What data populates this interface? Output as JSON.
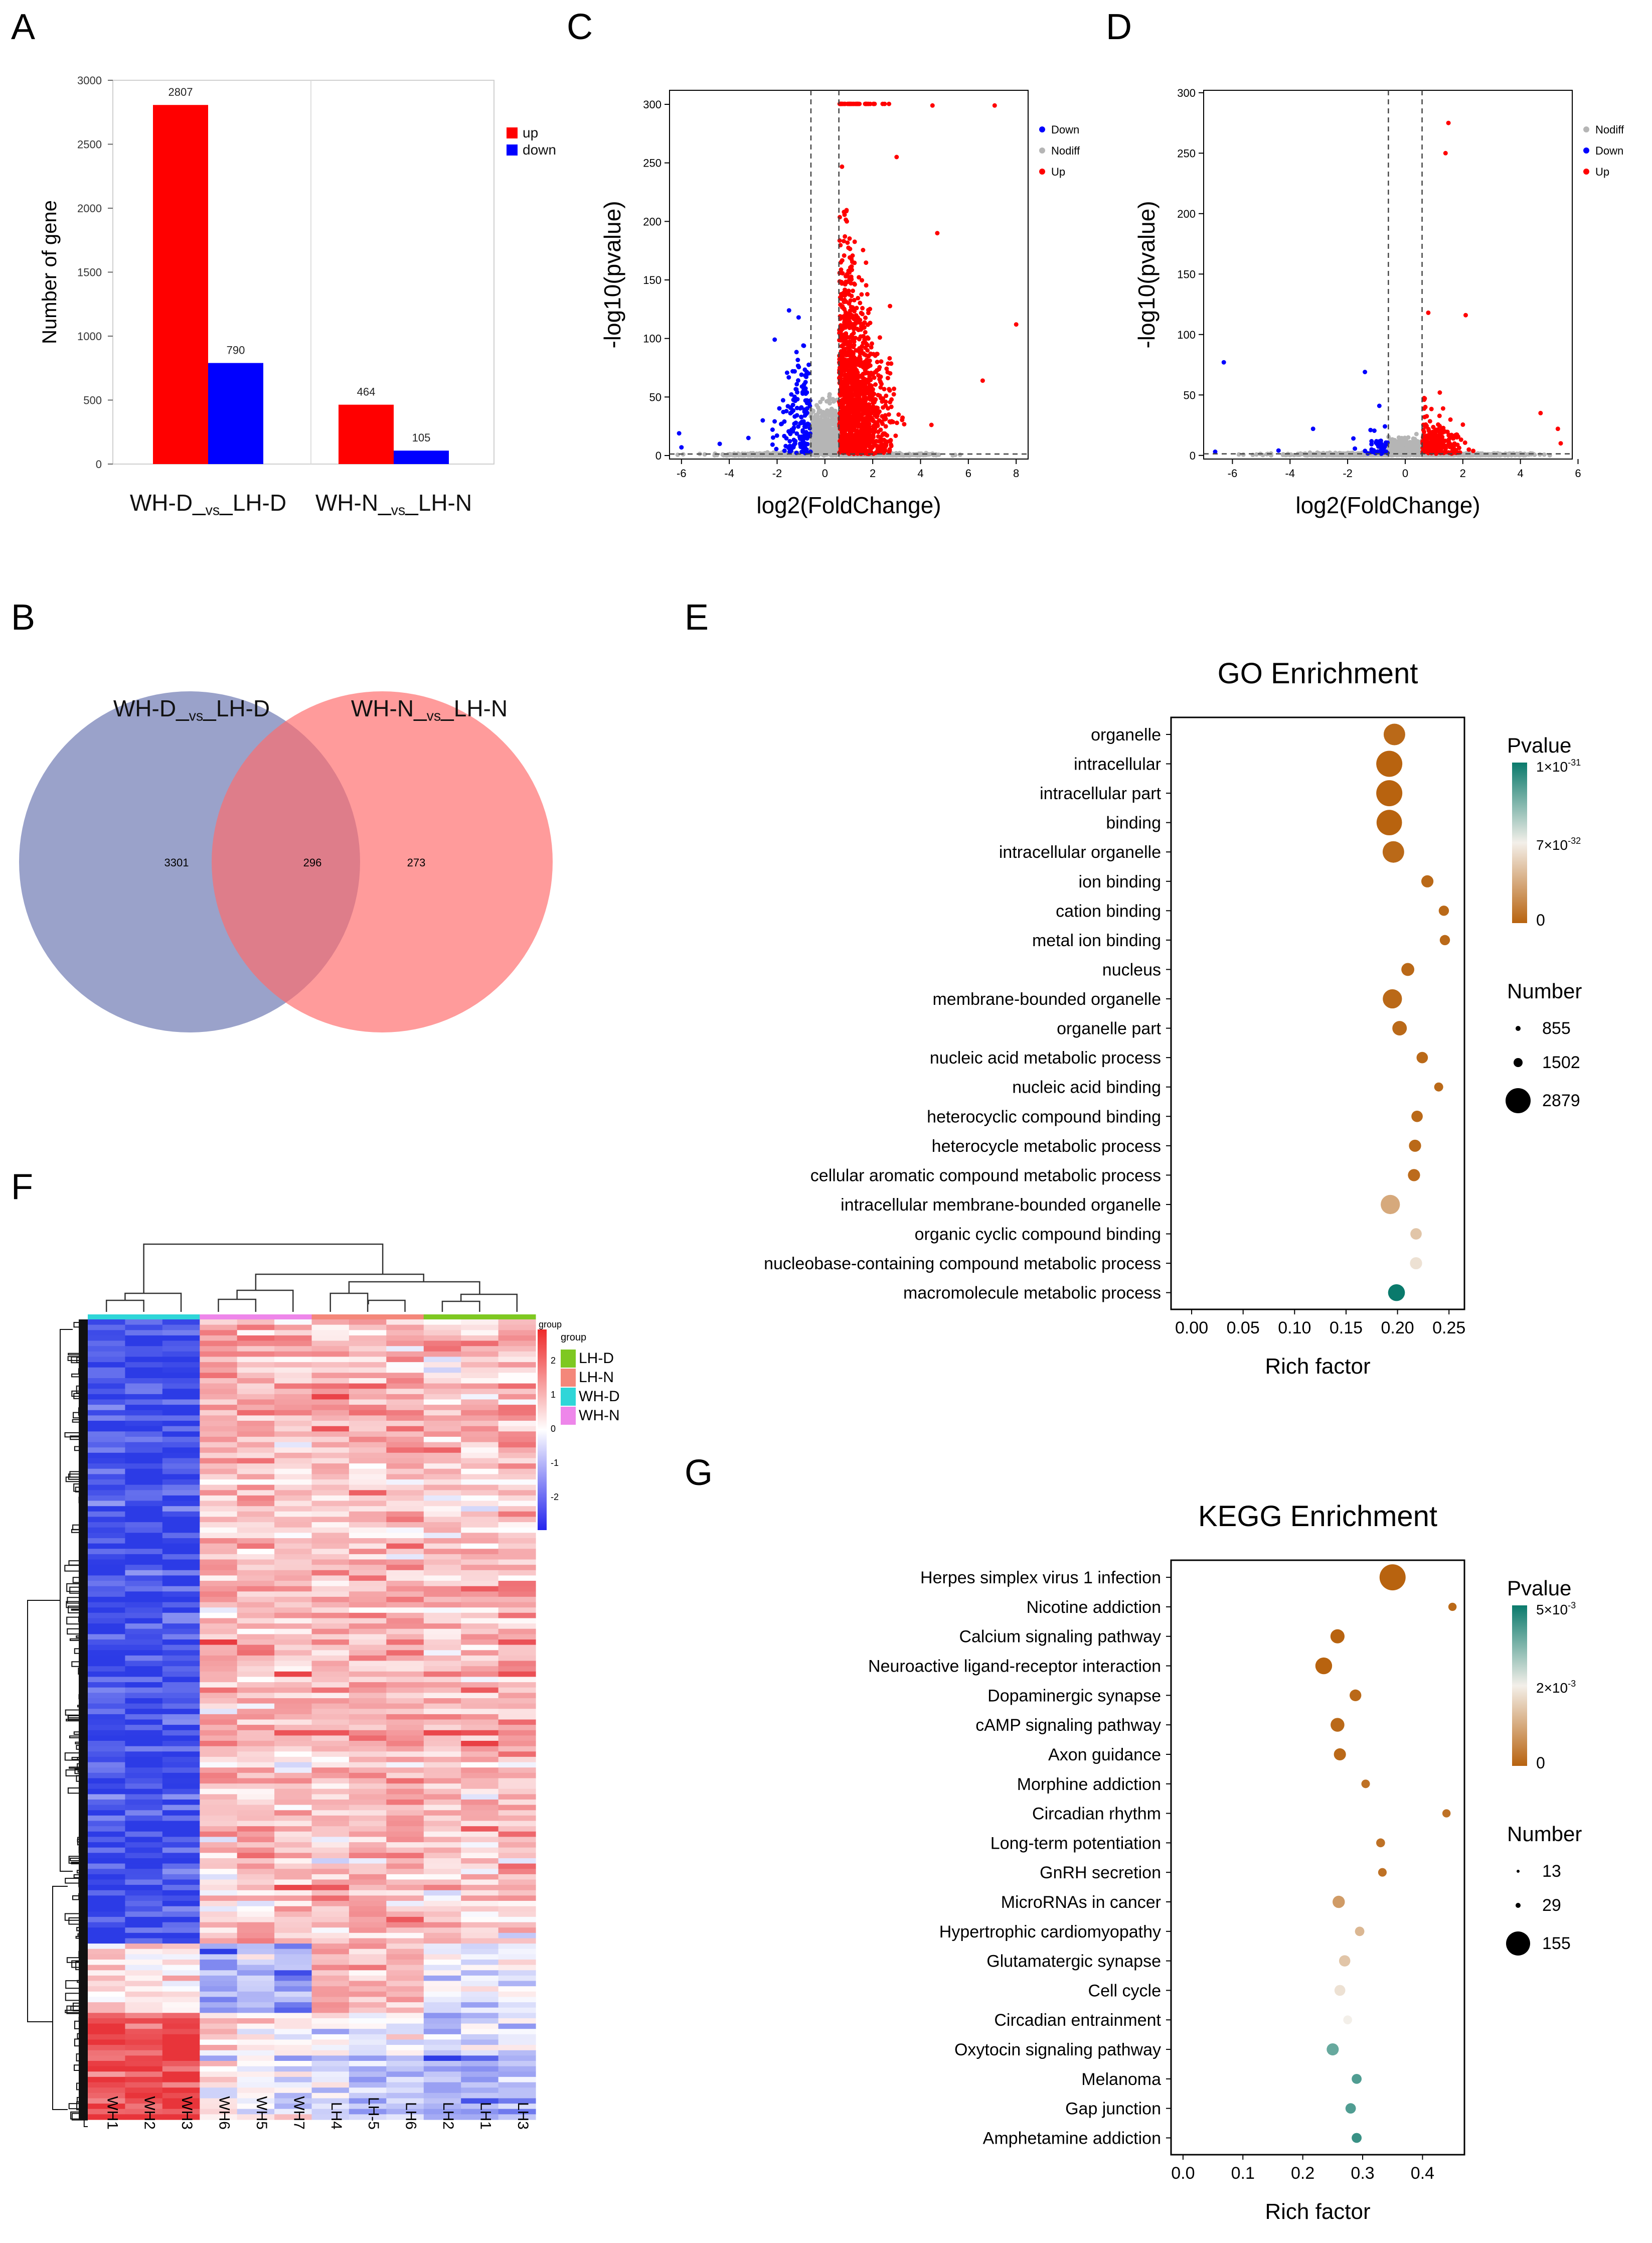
{
  "panel_labels": {
    "a": "A",
    "b": "B",
    "c": "C",
    "d": "D",
    "e": "E",
    "f": "F",
    "g": "G"
  },
  "colors": {
    "up": "#ff0000",
    "down": "#0000ff",
    "nodiff": "#b5b5b5",
    "venn_left": "#7d88bb",
    "venn_right": "#ff6b6b",
    "p_low": "#b8630f",
    "p_mid": "#f3efe9",
    "p_high": "#0a7a6c"
  },
  "chart_data": [
    {
      "id": "A",
      "type": "bar",
      "categories": [
        "WH-D_vs_LH-D",
        "WH-N_vs_LH-N"
      ],
      "category_parts": [
        [
          "WH-D_",
          "vs",
          "_LH-D"
        ],
        [
          "WH-N_",
          "vs",
          "_LH-N"
        ]
      ],
      "series": [
        {
          "name": "up",
          "values": [
            2807,
            464
          ]
        },
        {
          "name": "down",
          "values": [
            790,
            105
          ]
        }
      ],
      "value_labels": [
        [
          "2807",
          "790"
        ],
        [
          "464",
          "105"
        ]
      ],
      "ylabel": "Number of gene",
      "ylim": [
        0,
        3000
      ],
      "yticks": [
        0,
        500,
        1000,
        1500,
        2000,
        2500,
        3000
      ],
      "legend": "top-right"
    },
    {
      "id": "B",
      "type": "venn",
      "sets": [
        "WH-D_vs_LH-D",
        "WH-N_vs_LH-N"
      ],
      "set_parts": [
        [
          "WH-D_",
          "vs",
          "_LH-D"
        ],
        [
          "WH-N_",
          "vs",
          "_LH-N"
        ]
      ],
      "only_left": "3301",
      "overlap": "296",
      "only_right": "273"
    },
    {
      "id": "C",
      "type": "scatter",
      "xlabel": "log2(FoldChange)",
      "ylabel": "-log10(pvalue)",
      "xlim": [
        -6.5,
        8.5
      ],
      "ylim": [
        -3,
        312
      ],
      "xticks": [
        -6,
        -4,
        -2,
        0,
        2,
        4,
        6,
        8
      ],
      "yticks": [
        0,
        50,
        100,
        150,
        200,
        250,
        300
      ],
      "threshold_x": [
        -0.585,
        0.585
      ],
      "threshold_y": 1.3,
      "legend": [
        "Down",
        "Nodiff",
        "Up"
      ],
      "legend_colors": [
        "down",
        "nodiff",
        "up"
      ],
      "highlight_points": [
        {
          "x": 7.1,
          "y": 299,
          "g": "up"
        },
        {
          "x": 4.5,
          "y": 299,
          "g": "up"
        },
        {
          "x": 8.0,
          "y": 112,
          "g": "up"
        },
        {
          "x": 4.7,
          "y": 190,
          "g": "up"
        },
        {
          "x": 6.6,
          "y": 64,
          "g": "up"
        },
        {
          "x": 3.0,
          "y": 255,
          "g": "up"
        },
        {
          "x": -2.1,
          "y": 99,
          "g": "down"
        },
        {
          "x": -1.5,
          "y": 124,
          "g": "down"
        },
        {
          "x": -1.1,
          "y": 118,
          "g": "down"
        },
        {
          "x": -0.9,
          "y": 94,
          "g": "down"
        },
        {
          "x": -2.6,
          "y": 30,
          "g": "down"
        },
        {
          "x": -6.1,
          "y": 19,
          "g": "down"
        },
        {
          "x": -6.0,
          "y": 7,
          "g": "down"
        },
        {
          "x": -4.4,
          "y": 10,
          "g": "down"
        },
        {
          "x": -3.2,
          "y": 15,
          "g": "down"
        }
      ]
    },
    {
      "id": "D",
      "type": "scatter",
      "xlabel": "log2(FoldChange)",
      "ylabel": "-log10(pvalue)",
      "xlim": [
        -7,
        5.8
      ],
      "ylim": [
        -3,
        302
      ],
      "xticks": [
        -6,
        -4,
        -2,
        0,
        2,
        4,
        6
      ],
      "yticks": [
        0,
        50,
        100,
        150,
        200,
        250,
        300
      ],
      "threshold_x": [
        -0.585,
        0.585
      ],
      "threshold_y": 1.3,
      "legend": [
        "Nodiff",
        "Down",
        "Up"
      ],
      "legend_colors": [
        "nodiff",
        "down",
        "up"
      ],
      "highlight_points": [
        {
          "x": 1.5,
          "y": 275,
          "g": "up"
        },
        {
          "x": 1.4,
          "y": 250,
          "g": "up"
        },
        {
          "x": 2.1,
          "y": 116,
          "g": "up"
        },
        {
          "x": 0.8,
          "y": 118,
          "g": "up"
        },
        {
          "x": 1.2,
          "y": 52,
          "g": "up"
        },
        {
          "x": 4.7,
          "y": 35,
          "g": "up"
        },
        {
          "x": 5.3,
          "y": 22,
          "g": "up"
        },
        {
          "x": 5.4,
          "y": 10,
          "g": "up"
        },
        {
          "x": 0.7,
          "y": 40,
          "g": "up"
        },
        {
          "x": -6.3,
          "y": 77,
          "g": "down"
        },
        {
          "x": -1.4,
          "y": 69,
          "g": "down"
        },
        {
          "x": -0.9,
          "y": 41,
          "g": "down"
        },
        {
          "x": -3.2,
          "y": 22,
          "g": "down"
        },
        {
          "x": -1.8,
          "y": 14,
          "g": "down"
        },
        {
          "x": -6.6,
          "y": 3,
          "g": "down"
        },
        {
          "x": -4.4,
          "y": 4,
          "g": "down"
        }
      ]
    },
    {
      "id": "E",
      "type": "scatter",
      "subtype": "bubble",
      "title": "GO Enrichment",
      "xlabel": "Rich factor",
      "xlim": [
        -0.02,
        0.265
      ],
      "xticks": [
        0.0,
        0.05,
        0.1,
        0.15,
        0.2,
        0.25
      ],
      "xtick_labels": [
        "0.00",
        "0.05",
        "0.10",
        "0.15",
        "0.20",
        "0.25"
      ],
      "terms": [
        "organelle",
        "intracellular",
        "intracellular part",
        "binding",
        "intracellular organelle",
        "ion binding",
        "cation binding",
        "metal ion binding",
        "nucleus",
        "membrane-bounded organelle",
        "organelle part",
        "nucleic acid metabolic process",
        "nucleic acid binding",
        "heterocyclic compound binding",
        "heterocycle metabolic process",
        "cellular aromatic compound metabolic process",
        "intracellular membrane-bounded organelle",
        "organic cyclic compound binding",
        "nucleobase-containing compound metabolic process",
        "macromolecule metabolic process"
      ],
      "rich_factor": [
        0.197,
        0.192,
        0.192,
        0.192,
        0.196,
        0.229,
        0.245,
        0.246,
        0.21,
        0.195,
        0.202,
        0.224,
        0.24,
        0.219,
        0.217,
        0.216,
        0.193,
        0.218,
        0.218,
        0.199
      ],
      "number": [
        2300,
        2879,
        2879,
        2800,
        2300,
        1100,
        855,
        855,
        1200,
        2000,
        1400,
        1000,
        700,
        1000,
        1100,
        1100,
        2000,
        1000,
        1100,
        1700
      ],
      "pvalue_frac": [
        0.02,
        0.0,
        0.0,
        0.0,
        0.02,
        0.02,
        0.02,
        0.02,
        0.02,
        0.02,
        0.02,
        0.02,
        0.02,
        0.02,
        0.02,
        0.03,
        0.25,
        0.35,
        0.45,
        1.0
      ],
      "legend_pvalue": {
        "title": "Pvalue",
        "labels": [
          "1×10",
          "-31",
          "7×10",
          "-32",
          "0"
        ]
      },
      "legend_number": {
        "title": "Number",
        "values": [
          "855",
          "1502",
          "2879"
        ]
      }
    },
    {
      "id": "F",
      "type": "heatmap",
      "columns": [
        "WH1",
        "WH2",
        "WH3",
        "WH6",
        "WH5",
        "WH7",
        "LH4",
        "LH-5",
        "LH6",
        "LH2",
        "LH1",
        "LH3"
      ],
      "column_groups": [
        "WH-D",
        "WH-D",
        "WH-D",
        "WH-N",
        "WH-N",
        "WH-N",
        "LH-N",
        "LH-N",
        "LH-N",
        "LH-D",
        "LH-D",
        "LH-D"
      ],
      "group_colors": {
        "LH-D": "#7ec821",
        "LH-N": "#f4877a",
        "WH-D": "#2fd6d8",
        "WH-N": "#ee86ea"
      },
      "group_legend": {
        "title": "group",
        "items": [
          "LH-D",
          "LH-N",
          "WH-D",
          "WH-N"
        ]
      },
      "color_scale": {
        "ticks": [
          "2",
          "1",
          "0",
          "-1",
          "-2"
        ],
        "min": -2.5,
        "max": 2.5
      }
    },
    {
      "id": "G",
      "type": "scatter",
      "subtype": "bubble",
      "title": "KEGG Enrichment",
      "xlabel": "Rich factor",
      "xlim": [
        -0.02,
        0.47
      ],
      "xticks": [
        0.0,
        0.1,
        0.2,
        0.3,
        0.4
      ],
      "xtick_labels": [
        "0.0",
        "0.1",
        "0.2",
        "0.3",
        "0.4"
      ],
      "terms": [
        "Herpes simplex virus 1 infection",
        "Nicotine addiction",
        "Calcium signaling pathway",
        "Neuroactive ligand-receptor interaction",
        "Dopaminergic synapse",
        "cAMP signaling pathway",
        "Axon guidance",
        "Morphine addiction",
        "Circadian rhythm",
        "Long-term potentiation",
        "GnRH secretion",
        "MicroRNAs in cancer",
        "Hypertrophic cardiomyopathy",
        "Glutamatergic synapse",
        "Cell cycle",
        "Circadian entrainment",
        "Oxytocin signaling pathway",
        "Melanoma",
        "Gap junction",
        "Amphetamine addiction"
      ],
      "rich_factor": [
        0.35,
        0.45,
        0.258,
        0.235,
        0.288,
        0.258,
        0.262,
        0.305,
        0.44,
        0.33,
        0.333,
        0.26,
        0.295,
        0.27,
        0.262,
        0.275,
        0.25,
        0.29,
        0.28,
        0.29
      ],
      "number": [
        155,
        8,
        36,
        55,
        22,
        34,
        24,
        9,
        8,
        10,
        9,
        25,
        12,
        20,
        18,
        10,
        24,
        14,
        16,
        14
      ],
      "pvalue_frac": [
        0.0,
        0.02,
        0.0,
        0.0,
        0.02,
        0.02,
        0.02,
        0.05,
        0.05,
        0.05,
        0.05,
        0.2,
        0.3,
        0.35,
        0.45,
        0.5,
        0.8,
        0.85,
        0.85,
        0.9
      ],
      "legend_pvalue": {
        "title": "Pvalue",
        "labels": [
          "5×10",
          "-3",
          "2×10",
          "-3",
          "0"
        ]
      },
      "legend_number": {
        "title": "Number",
        "values": [
          "13",
          "29",
          "155"
        ]
      }
    }
  ]
}
